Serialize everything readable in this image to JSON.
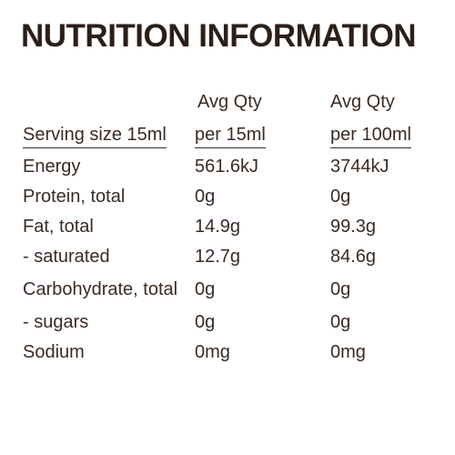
{
  "title": "NUTRITION INFORMATION",
  "header": {
    "col_a_line1": "Avg Qty",
    "col_b_line1": "Avg Qty",
    "serving_label": "Serving size 15ml",
    "col_a_line2": "per 15ml",
    "col_b_line2": "per 100ml"
  },
  "rows": [
    {
      "label": "Energy",
      "per_serving": "561.6kJ",
      "per_100ml": "3744kJ"
    },
    {
      "label": "Protein, total",
      "per_serving": "0g",
      "per_100ml": "0g"
    },
    {
      "label": "Fat, total",
      "per_serving": "14.9g",
      "per_100ml": "99.3g"
    },
    {
      "label": "- saturated",
      "per_serving": "12.7g",
      "per_100ml": "84.6g"
    },
    {
      "label": "Carbohydrate, total",
      "per_serving": "0g",
      "per_100ml": "0g"
    },
    {
      "label": "- sugars",
      "per_serving": "0g",
      "per_100ml": "0g"
    },
    {
      "label": "Sodium",
      "per_serving": "0mg",
      "per_100ml": "0mg"
    }
  ]
}
